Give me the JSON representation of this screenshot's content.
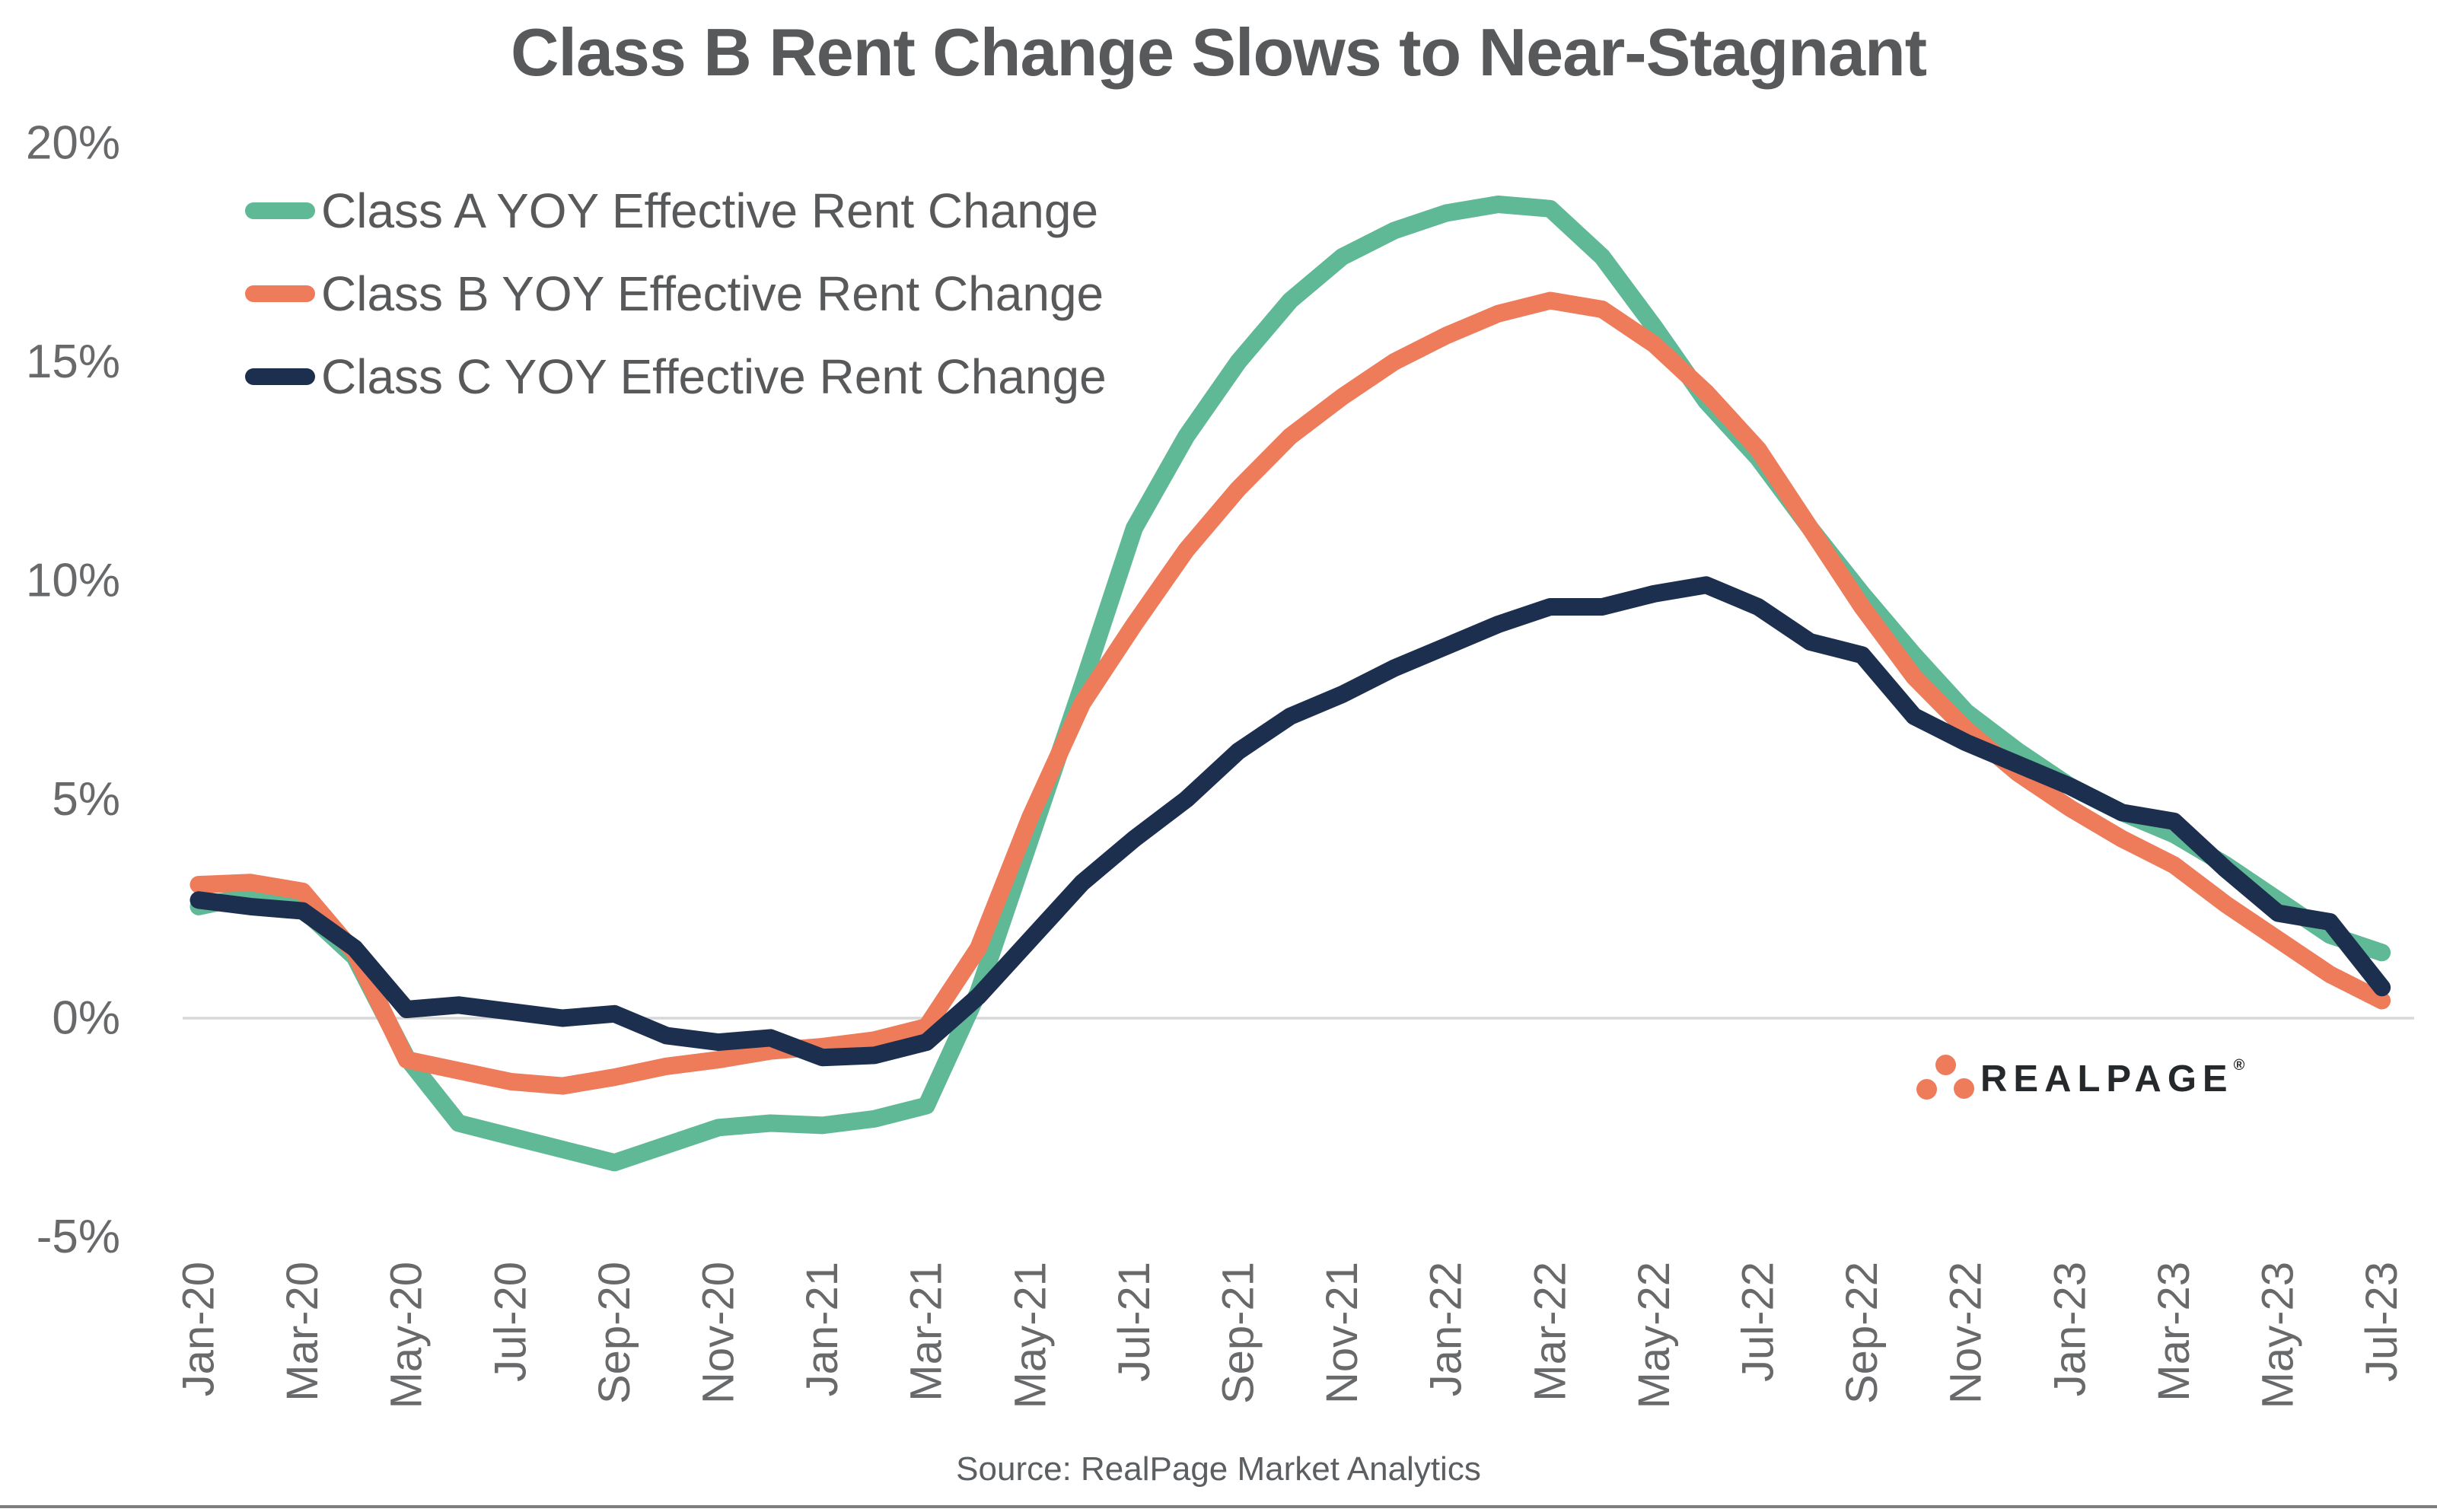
{
  "title": "Class B Rent Change Slows to Near-Stagnant",
  "source": "Source: RealPage Market Analytics",
  "logo": {
    "text": "REALPAGE",
    "mark": "®"
  },
  "colors": {
    "class_a": "#5FB896",
    "class_b": "#EE7B5A",
    "class_c": "#1C2F4E",
    "title_text": "#58595B",
    "axis_text": "#68696B",
    "legend_text": "#58595B",
    "zero_gridline": "#D8D8D8",
    "background": "#FFFFFF"
  },
  "chart_data": {
    "type": "line",
    "title": "Class B Rent Change Slows to Near-Stagnant",
    "xlabel": "",
    "ylabel": "",
    "ylim": [
      -5,
      20
    ],
    "grid": "zero-line-only",
    "legend_position": "top-left",
    "x_tick_step": 2,
    "x": [
      "Jan-20",
      "Feb-20",
      "Mar-20",
      "Apr-20",
      "May-20",
      "Jun-20",
      "Jul-20",
      "Aug-20",
      "Sep-20",
      "Oct-20",
      "Nov-20",
      "Dec-20",
      "Jan-21",
      "Feb-21",
      "Mar-21",
      "Apr-21",
      "May-21",
      "Jun-21",
      "Jul-21",
      "Aug-21",
      "Sep-21",
      "Oct-21",
      "Nov-21",
      "Dec-21",
      "Jan-22",
      "Feb-22",
      "Mar-22",
      "Apr-22",
      "May-22",
      "Jun-22",
      "Jul-22",
      "Aug-22",
      "Sep-22",
      "Oct-22",
      "Nov-22",
      "Dec-22",
      "Jan-23",
      "Feb-23",
      "Mar-23",
      "Apr-23",
      "May-23",
      "Jun-23",
      "Jul-23"
    ],
    "yticks": [
      {
        "v": 20,
        "label": "20%"
      },
      {
        "v": 15,
        "label": "15%"
      },
      {
        "v": 10,
        "label": "10%"
      },
      {
        "v": 5,
        "label": "5%"
      },
      {
        "v": 0,
        "label": "0%"
      },
      {
        "v": -5,
        "label": "-5%"
      }
    ],
    "series": [
      {
        "name": "Class A YOY Effective Rent Change",
        "color": "#5FB896",
        "values": [
          2.55,
          2.8,
          2.5,
          1.4,
          -0.9,
          -2.4,
          -2.7,
          -3.0,
          -3.3,
          -2.9,
          -2.5,
          -2.4,
          -2.45,
          -2.3,
          -2.0,
          0.6,
          4.1,
          7.6,
          11.2,
          13.3,
          15.0,
          16.4,
          17.4,
          18.0,
          18.4,
          18.6,
          18.5,
          17.4,
          15.8,
          14.1,
          12.8,
          11.2,
          9.7,
          8.3,
          7.0,
          6.1,
          5.3,
          4.7,
          4.2,
          3.5,
          2.7,
          1.9,
          1.5
        ]
      },
      {
        "name": "Class B YOY Effective Rent Change",
        "color": "#EE7B5A",
        "values": [
          3.05,
          3.1,
          2.9,
          1.5,
          -0.95,
          -1.2,
          -1.45,
          -1.55,
          -1.35,
          -1.1,
          -0.95,
          -0.75,
          -0.65,
          -0.5,
          -0.2,
          1.6,
          4.6,
          7.2,
          9.0,
          10.7,
          12.1,
          13.3,
          14.2,
          15.0,
          15.6,
          16.1,
          16.4,
          16.2,
          15.4,
          14.3,
          13.0,
          11.2,
          9.4,
          7.8,
          6.6,
          5.6,
          4.8,
          4.1,
          3.5,
          2.6,
          1.8,
          1.0,
          0.4
        ]
      },
      {
        "name": "Class C YOY Effective Rent Change",
        "color": "#1C2F4E",
        "values": [
          2.7,
          2.55,
          2.45,
          1.6,
          0.2,
          0.3,
          0.15,
          0.0,
          0.1,
          -0.4,
          -0.55,
          -0.45,
          -0.9,
          -0.85,
          -0.55,
          0.5,
          1.8,
          3.1,
          4.1,
          5.0,
          6.1,
          6.9,
          7.4,
          8.0,
          8.5,
          9.0,
          9.4,
          9.4,
          9.7,
          9.9,
          9.4,
          8.6,
          8.3,
          6.9,
          6.3,
          5.8,
          5.3,
          4.7,
          4.5,
          3.4,
          2.4,
          2.2,
          0.7
        ]
      }
    ]
  }
}
